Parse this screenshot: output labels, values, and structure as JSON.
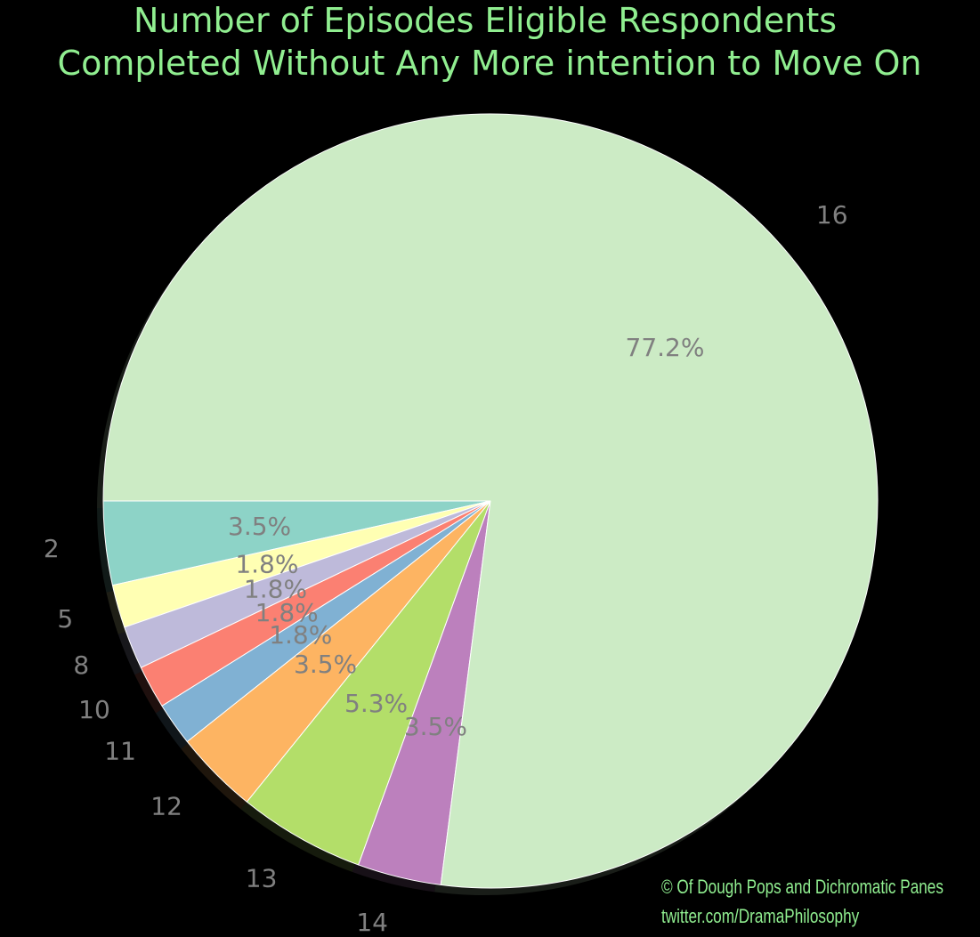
{
  "chart_data": {
    "type": "pie",
    "title": [
      "Number of Episodes Eligible Respondents",
      "Completed Without Any More intention to Move On"
    ],
    "categories": [
      "2",
      "5",
      "8",
      "10",
      "11",
      "12",
      "13",
      "14",
      "16"
    ],
    "values": [
      3.5,
      1.8,
      1.8,
      1.8,
      1.8,
      3.5,
      5.3,
      3.5,
      77.2
    ],
    "percent_labels": [
      "3.5%",
      "1.8%",
      "1.8%",
      "1.8%",
      "1.8%",
      "3.5%",
      "5.3%",
      "3.5%",
      "77.2%"
    ],
    "colors": [
      "#8dd3c7",
      "#ffffb3",
      "#bebada",
      "#fb8072",
      "#80b1d3",
      "#fdb462",
      "#b3de69",
      "#bc80bd",
      "#ccebc5"
    ],
    "start_angle_deg": 180,
    "direction": "counterclockwise",
    "shadow": true
  },
  "style": {
    "background": "#000000",
    "title_color": "#90ee90",
    "label_color": "#808080",
    "edge_color": "#ffffff",
    "credit_color": "#90ee90"
  },
  "credit": {
    "line1": "© Of Dough Pops and Dichromatic Panes",
    "line2": "twitter.com/DramaPhilosophy"
  }
}
